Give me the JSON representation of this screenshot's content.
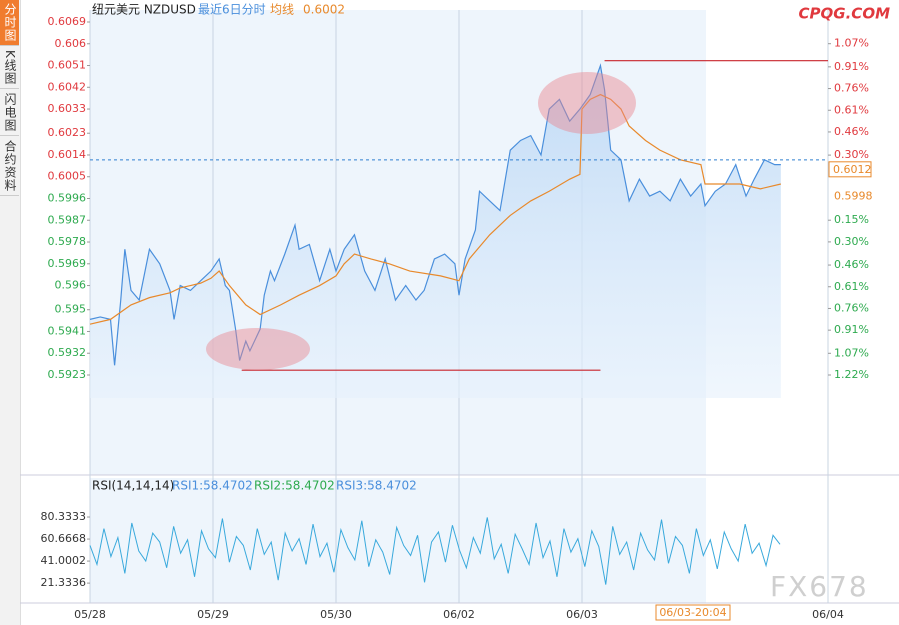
{
  "sidebar": {
    "tabs": [
      "分时图",
      "K线图",
      "闪电图",
      "合约资料"
    ]
  },
  "logo": "CPQG.COM",
  "watermark": "FX678",
  "cursor_label": "06/03-20:04",
  "chart_data": [
    {
      "type": "line",
      "title": "纽元美元 NZDUSD",
      "subtitle": "最近6日分时",
      "avg_value": 0.6002,
      "xlim": [
        0,
        360
      ],
      "xticks": [
        {
          "value": 0,
          "label": "05/28"
        },
        {
          "value": 60,
          "label": "05/29"
        },
        {
          "value": 120,
          "label": "05/30"
        },
        {
          "value": 180,
          "label": "06/02"
        },
        {
          "value": 240,
          "label": "06/03"
        },
        {
          "value": 360,
          "label": "06/04"
        }
      ],
      "ylim": [
        0.5923,
        0.6069
      ],
      "yticks": [
        0.6069,
        0.606,
        0.6051,
        0.6042,
        0.6033,
        0.6023,
        0.6014,
        0.6005,
        0.5996,
        0.5987,
        0.5978,
        0.5969,
        0.596,
        0.595,
        0.5941,
        0.5932,
        0.5923
      ],
      "y2lim": [
        -1.22,
        1.22
      ],
      "y2ticks": [
        {
          "value": 1.07,
          "label": "1.07%"
        },
        {
          "value": 0.91,
          "label": "0.91%"
        },
        {
          "value": 0.76,
          "label": "0.76%"
        },
        {
          "value": 0.61,
          "label": "0.61%"
        },
        {
          "value": 0.46,
          "label": "0.46%"
        },
        {
          "value": 0.3,
          "label": "0.30%"
        },
        {
          "value": -0.15,
          "label": "0.15%"
        },
        {
          "value": -0.3,
          "label": "0.30%"
        },
        {
          "value": -0.46,
          "label": "0.46%"
        },
        {
          "value": -0.61,
          "label": "0.61%"
        },
        {
          "value": -0.76,
          "label": "0.76%"
        },
        {
          "value": -0.91,
          "label": "0.91%"
        },
        {
          "value": -1.07,
          "label": "1.07%"
        },
        {
          "value": -1.22,
          "label": "1.22%"
        }
      ],
      "current_price": 0.6012,
      "prev_close": 0.5998,
      "up_color": "#e0393e",
      "down_color": "#2eaa4f",
      "levels": [
        {
          "value": 0.6053,
          "x": [
            251,
            360
          ]
        },
        {
          "value": 0.5925,
          "x": [
            74,
            249
          ]
        }
      ],
      "series": [
        {
          "color": "#4a8fdc",
          "x": [
            0,
            5,
            10,
            12,
            15,
            17,
            20,
            24,
            29,
            34,
            39,
            41,
            44,
            49,
            54,
            59,
            63,
            66,
            68,
            71,
            73,
            76,
            78,
            83,
            85,
            88,
            90,
            95,
            100,
            102,
            107,
            112,
            117,
            120,
            124,
            129,
            134,
            139,
            144,
            149,
            154,
            159,
            163,
            168,
            173,
            178,
            180,
            183,
            188,
            190,
            195,
            200,
            205,
            210,
            215,
            220,
            224,
            229,
            234,
            239,
            244,
            249,
            251,
            254,
            259,
            263,
            268,
            273,
            278,
            283,
            288,
            293,
            298,
            300,
            305,
            310,
            315,
            320,
            324,
            329,
            334,
            337
          ],
          "values": [
            0.5946,
            0.5947,
            0.5946,
            0.5927,
            0.5954,
            0.5975,
            0.5958,
            0.5954,
            0.5975,
            0.5969,
            0.5958,
            0.5946,
            0.596,
            0.5958,
            0.5962,
            0.5966,
            0.5971,
            0.596,
            0.5958,
            0.5942,
            0.5929,
            0.5937,
            0.5933,
            0.5942,
            0.5956,
            0.5966,
            0.5962,
            0.5973,
            0.5985,
            0.5975,
            0.5977,
            0.5962,
            0.5975,
            0.5966,
            0.5975,
            0.5981,
            0.5966,
            0.5958,
            0.5971,
            0.5954,
            0.596,
            0.5954,
            0.5958,
            0.5971,
            0.5973,
            0.5969,
            0.5956,
            0.5971,
            0.5983,
            0.5999,
            0.5995,
            0.5991,
            0.6016,
            0.602,
            0.6022,
            0.6014,
            0.6033,
            0.6037,
            0.6028,
            0.6033,
            0.6039,
            0.6051,
            0.6041,
            0.6016,
            0.6012,
            0.5995,
            0.6004,
            0.5997,
            0.5999,
            0.5995,
            0.6004,
            0.5997,
            0.6002,
            0.5993,
            0.5999,
            0.6002,
            0.601,
            0.5997,
            0.6004,
            0.6012,
            0.601,
            0.601
          ]
        },
        {
          "name": "均线",
          "color": "#e8892b",
          "x": [
            0,
            10,
            20,
            29,
            39,
            44,
            49,
            54,
            59,
            63,
            68,
            76,
            83,
            93,
            102,
            112,
            120,
            124,
            129,
            137,
            146,
            156,
            171,
            180,
            185,
            195,
            205,
            215,
            224,
            234,
            239,
            240,
            244,
            249,
            254,
            259,
            263,
            271,
            278,
            288,
            298,
            300,
            307,
            317,
            327,
            337
          ],
          "values": [
            0.5944,
            0.5946,
            0.5952,
            0.5955,
            0.5957,
            0.5959,
            0.596,
            0.5961,
            0.5963,
            0.5966,
            0.596,
            0.5952,
            0.5948,
            0.5952,
            0.5956,
            0.596,
            0.5964,
            0.5969,
            0.5973,
            0.5971,
            0.5969,
            0.5966,
            0.5964,
            0.5962,
            0.5971,
            0.5981,
            0.5989,
            0.5995,
            0.5999,
            0.6004,
            0.6006,
            0.6033,
            0.6037,
            0.6039,
            0.6037,
            0.6033,
            0.6026,
            0.602,
            0.6016,
            0.6012,
            0.601,
            0.6002,
            0.6002,
            0.6002,
            0.6,
            0.6002
          ]
        }
      ]
    },
    {
      "type": "line",
      "title": "RSI(14,14,14)",
      "series_labels": [
        "RSI1:58.4702",
        "RSI2:58.4702",
        "RSI3:58.4702"
      ],
      "ylim": [
        0,
        100
      ],
      "yticks": [
        80.3333,
        60.6668,
        41.0002,
        21.3336
      ],
      "color": "#39a9dc",
      "values": [
        55,
        38,
        70,
        45,
        62,
        30,
        75,
        50,
        41,
        66,
        58,
        35,
        72,
        48,
        60,
        27,
        68,
        52,
        44,
        79,
        40,
        63,
        55,
        33,
        70,
        47,
        58,
        24,
        66,
        50,
        61,
        38,
        74,
        45,
        57,
        31,
        69,
        53,
        42,
        77,
        36,
        60,
        49,
        29,
        71,
        55,
        46,
        64,
        22,
        58,
        67,
        40,
        73,
        51,
        35,
        62,
        48,
        80,
        43,
        56,
        30,
        65,
        52,
        38,
        75,
        44,
        59,
        27,
        70,
        49,
        61,
        36,
        68,
        54,
        20,
        72,
        47,
        58,
        33,
        66,
        51,
        42,
        78,
        39,
        63,
        55,
        30,
        70,
        46,
        60,
        34,
        67,
        52,
        41,
        74,
        48,
        57,
        37,
        64,
        56
      ]
    }
  ]
}
